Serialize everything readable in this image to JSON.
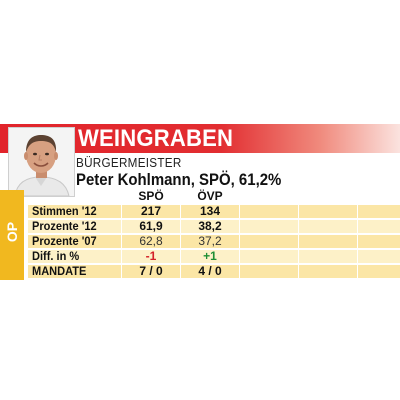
{
  "municipality": "WEINGRABEN",
  "role": "BÜRGERMEISTER",
  "mayor": "Peter Kohlmann, SPÖ, 61,2%",
  "side_tab": "OP",
  "table": {
    "columns": [
      "SPÖ",
      "ÖVP"
    ],
    "rows": [
      {
        "label": "Stimmen '12",
        "values": [
          "217",
          "134"
        ],
        "style": "bold"
      },
      {
        "label": "Prozente '12",
        "values": [
          "61,9",
          "38,2"
        ],
        "style": "bold"
      },
      {
        "label": "Prozente '07",
        "values": [
          "62,8",
          "37,2"
        ],
        "style": "light"
      },
      {
        "label": "Diff. in %",
        "values": [
          "-1",
          "+1"
        ],
        "style": "diff"
      },
      {
        "label": "MANDATE",
        "values": [
          "7 / 0",
          "4 / 0"
        ],
        "style": "bold"
      }
    ]
  },
  "colors": {
    "header_red": "#e1242b",
    "accent_yellow": "#f1b81f",
    "row_odd": "#fbe6a6",
    "row_even": "#fdf1c8",
    "negative": "#d42027",
    "positive": "#1e8f34"
  }
}
